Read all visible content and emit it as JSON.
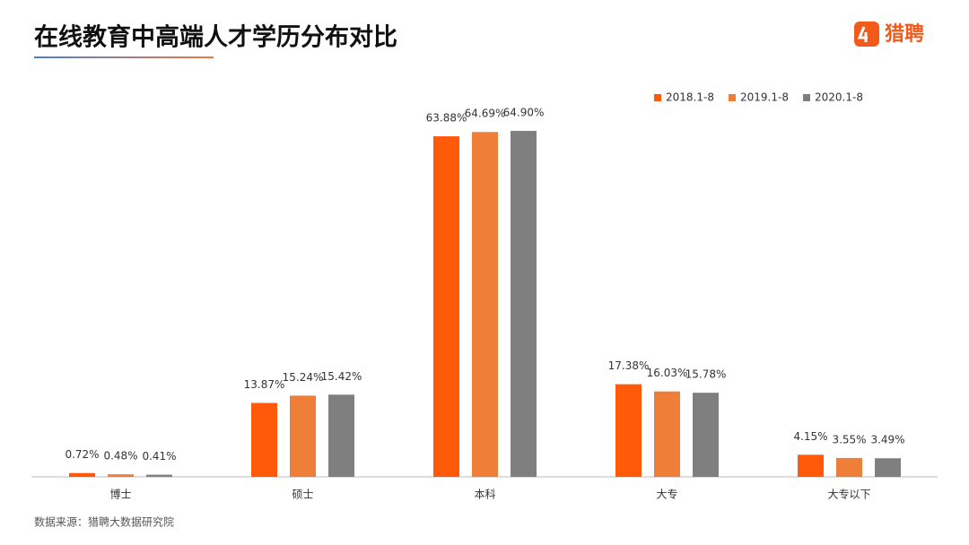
{
  "chart_data": {
    "type": "bar",
    "title": "在线教育中高端人才学历分布对比",
    "categories": [
      "博士",
      "硕士",
      "本科",
      "大专",
      "大专以下"
    ],
    "series": [
      {
        "name": "2018.1-8",
        "color": "#fe5a0a",
        "values": [
          0.72,
          13.87,
          63.88,
          17.38,
          4.15
        ],
        "value_labels": [
          "0.72%",
          "13.87%",
          "63.88%",
          "17.38%",
          "4.15%"
        ]
      },
      {
        "name": "2019.1-8",
        "color": "#ef7e38",
        "values": [
          0.48,
          15.24,
          64.69,
          16.03,
          3.55
        ],
        "value_labels": [
          "0.48%",
          "15.24%",
          "64.69%",
          "16.03%",
          "3.55%"
        ]
      },
      {
        "name": "2020.1-8",
        "color": "#7f7f7f",
        "values": [
          0.41,
          15.42,
          64.9,
          15.78,
          3.49
        ],
        "value_labels": [
          "0.41%",
          "15.42%",
          "64.90%",
          "15.78%",
          "3.49%"
        ]
      }
    ],
    "legend": "top-right",
    "source": "数据来源：猎聘大数据研究院"
  },
  "brand": "猎聘"
}
